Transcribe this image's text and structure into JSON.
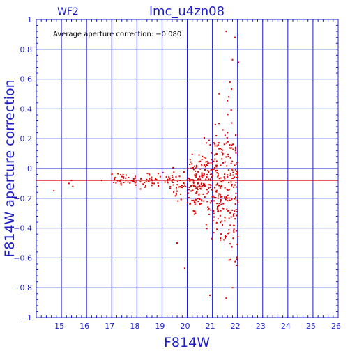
{
  "chart_data": {
    "type": "scatter",
    "title": "lmc_u4zn08",
    "chip_label": "WF2",
    "xlabel": "F814W",
    "ylabel": "F814W aperture correction",
    "annotation": "Average aperture correction:  −0.080",
    "xlim": [
      14,
      26
    ],
    "ylim": [
      -1,
      1
    ],
    "x_ticks": [
      15,
      16,
      17,
      18,
      19,
      20,
      21,
      22,
      23,
      24,
      25,
      26
    ],
    "y_ticks": [
      -1,
      -0.8,
      -0.6,
      -0.4,
      -0.2,
      0,
      0.2,
      0.4,
      0.6,
      0.8,
      1
    ],
    "x_tick_labels": [
      "15",
      "16",
      "17",
      "18",
      "19",
      "20",
      "21",
      "22",
      "23",
      "24",
      "25",
      "26"
    ],
    "y_tick_labels": [
      "−1",
      "−0.8",
      "−0.6",
      "−0.4",
      "−0.2",
      "0",
      "0.2",
      "0.4",
      "0.6",
      "0.8",
      "1"
    ],
    "grid": true,
    "reference_line": -0.08,
    "point_count": 520,
    "colors": {
      "axes": "#1e1ec8",
      "points": "#dc0000",
      "reference_line": "#dc0000",
      "annotation": "#000000"
    }
  }
}
